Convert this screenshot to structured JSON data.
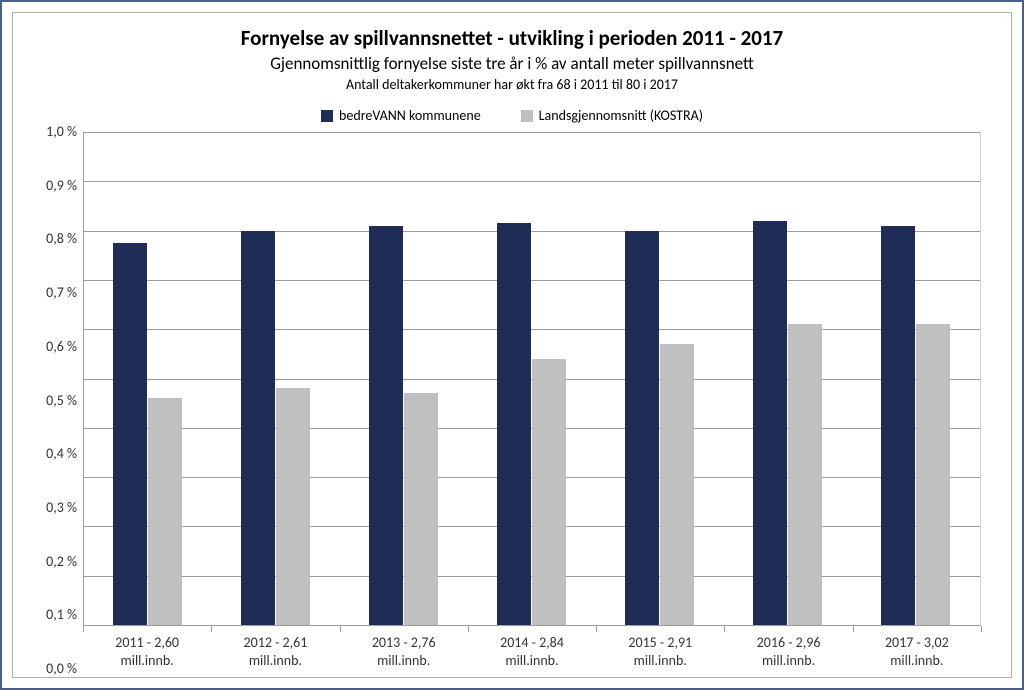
{
  "chart": {
    "type": "bar-grouped",
    "title_main": "Fornyelse av spillvannsnettet - utvikling i perioden 2011 - 2017",
    "title_sub": "Gjennomsnittlig fornyelse siste tre år i % av antall meter spillvannsnett",
    "title_note": "Antall deltakerkommuner har økt fra 68 i 2011 til 80 i 2017",
    "title_fontsize_main": 21,
    "title_fontsize_sub": 17,
    "title_fontsize_note": 14,
    "background_color": "#ffffff",
    "outer_border_color": "#4a5f8a",
    "inner_border_color": "#b0b0b0",
    "grid_color": "#9c9c9c",
    "axis_color": "#9c9c9c",
    "text_color": "#333333",
    "legend": {
      "position": "top-center",
      "items": [
        {
          "label": "bedreVANN kommunene",
          "color": "#1f2c56"
        },
        {
          "label": "Landsgjennomsnitt (KOSTRA)",
          "color": "#bfbfbf"
        }
      ]
    },
    "y_axis": {
      "ylim": [
        0.0,
        1.0
      ],
      "ticks": [
        1.0,
        0.9,
        0.8,
        0.7,
        0.6,
        0.5,
        0.4,
        0.3,
        0.2,
        0.1,
        0.0
      ],
      "tick_labels": [
        "1,0 %",
        "0,9 %",
        "0,8 %",
        "0,7 %",
        "0,6 %",
        "0,5 %",
        "0,4 %",
        "0,3 %",
        "0,2 %",
        "0,1 %",
        "0,0 %"
      ],
      "label_fontsize": 14
    },
    "x_axis": {
      "categories": [
        "2011 - 2,60\nmill.innb.",
        "2012 - 2,61\nmill.innb.",
        "2013 - 2,76\nmill.innb.",
        "2014 - 2,84\nmill.innb.",
        "2015 - 2,91\nmill.innb.",
        "2016 - 2,96\nmill.innb.",
        "2017 - 3,02\nmill.innb."
      ],
      "label_fontsize": 14
    },
    "series": [
      {
        "name": "bedreVANN kommunene",
        "color": "#1f2c56",
        "values": [
          0.775,
          0.8,
          0.81,
          0.815,
          0.8,
          0.82,
          0.81
        ]
      },
      {
        "name": "Landsgjennomsnitt (KOSTRA)",
        "color": "#bfbfbf",
        "values": [
          0.46,
          0.48,
          0.47,
          0.54,
          0.57,
          0.61,
          0.61
        ]
      }
    ],
    "bar_group_width_ratio": 0.55,
    "bar_gap_ratio": 0.0
  }
}
